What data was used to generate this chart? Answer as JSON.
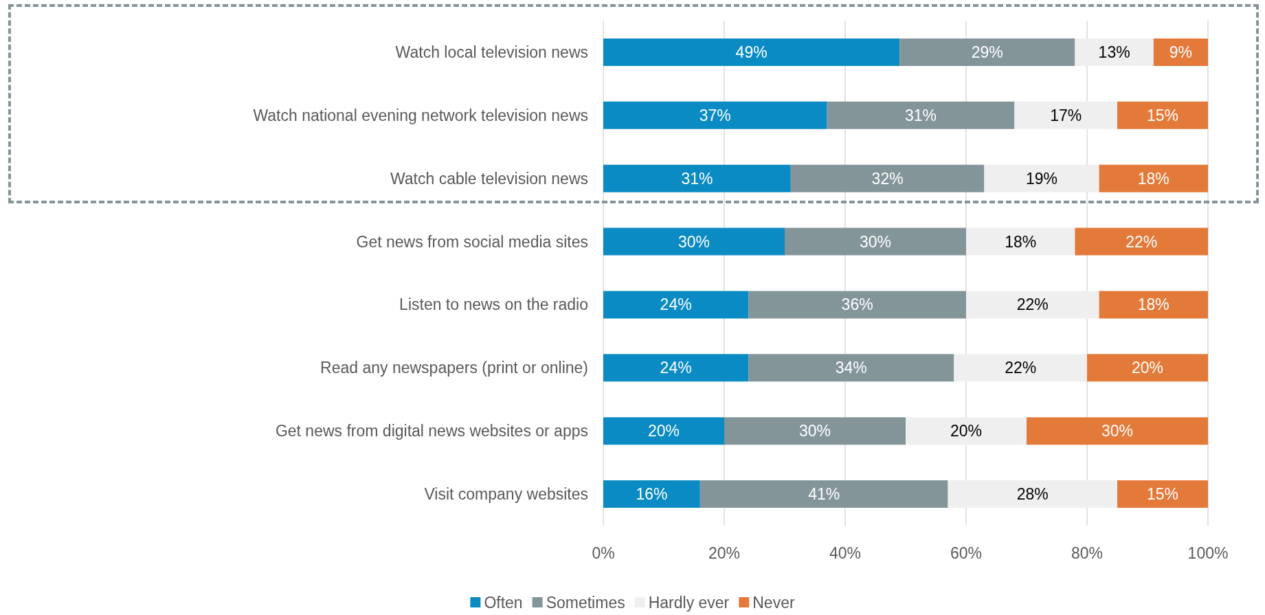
{
  "chart_data": {
    "type": "bar",
    "orientation": "horizontal",
    "stacked": true,
    "categories": [
      "Watch local television news",
      "Watch national evening network television news",
      "Watch cable television news",
      "Get news from social media sites",
      "Listen to news on the radio",
      "Read any newspapers (print or online)",
      "Get news from digital news websites or apps",
      "Visit company websites"
    ],
    "series": [
      {
        "name": "Often",
        "color": "#0a8bc4",
        "values": [
          49,
          37,
          31,
          30,
          24,
          24,
          20,
          16
        ],
        "value_labels": [
          "49%",
          "37%",
          "31%",
          "30%",
          "24%",
          "24%",
          "20%",
          "16%"
        ]
      },
      {
        "name": "Sometimes",
        "color": "#84959a",
        "values": [
          29,
          31,
          32,
          30,
          36,
          34,
          30,
          41
        ],
        "value_labels": [
          "29%",
          "31%",
          "32%",
          "30%",
          "36%",
          "34%",
          "30%",
          "41%"
        ]
      },
      {
        "name": "Hardly ever",
        "color": "#efefef",
        "values": [
          13,
          17,
          19,
          18,
          22,
          22,
          20,
          28
        ],
        "value_labels": [
          "13%",
          "17%",
          "19%",
          "18%",
          "22%",
          "22%",
          "20%",
          "28%"
        ]
      },
      {
        "name": "Never",
        "color": "#e47a3a",
        "values": [
          9,
          15,
          18,
          22,
          18,
          20,
          30,
          15
        ],
        "value_labels": [
          "9%",
          "15%",
          "18%",
          "22%",
          "18%",
          "20%",
          "30%",
          "15%"
        ]
      }
    ],
    "xlim": [
      0,
      100
    ],
    "xticks": [
      {
        "value": 0,
        "label": "0%"
      },
      {
        "value": 20,
        "label": "20%"
      },
      {
        "value": 40,
        "label": "40%"
      },
      {
        "value": 60,
        "label": "60%"
      },
      {
        "value": 80,
        "label": "80%"
      },
      {
        "value": 100,
        "label": "100%"
      }
    ],
    "grid": "x",
    "legend": "bottom"
  }
}
